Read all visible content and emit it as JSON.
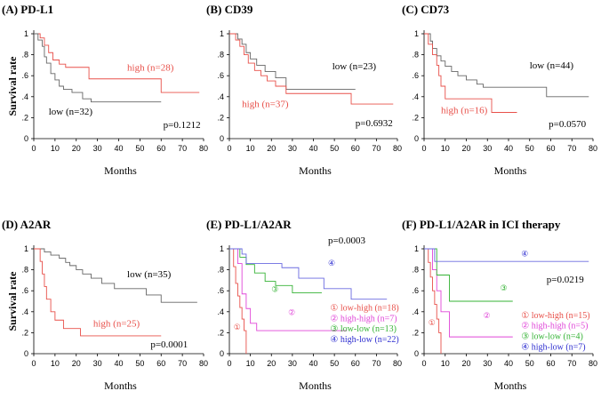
{
  "chart_data": [
    {
      "panel": "A",
      "type": "line",
      "title": "(A) PD-L1",
      "xlabel": "Months",
      "ylabel": "Survival rate",
      "xlim": [
        0,
        80
      ],
      "ylim": [
        0,
        1
      ],
      "xticks": [
        "0",
        "10",
        "20",
        "30",
        "40",
        "50",
        "60",
        "70",
        "80"
      ],
      "yticks": [
        "0",
        ".2",
        ".4",
        ".6",
        ".8",
        "1"
      ],
      "series": [
        {
          "name": "high (n=28)",
          "color": "#e8504a",
          "x": [
            0,
            3,
            5,
            7,
            9,
            12,
            15,
            26,
            60,
            78
          ],
          "y": [
            1,
            0.96,
            0.89,
            0.82,
            0.75,
            0.71,
            0.68,
            0.57,
            0.44,
            0.44
          ]
        },
        {
          "name": "low (n=32)",
          "color": "#666666",
          "x": [
            0,
            2,
            4,
            5,
            6,
            8,
            10,
            12,
            14,
            18,
            23,
            27,
            60
          ],
          "y": [
            1,
            0.94,
            0.88,
            0.78,
            0.72,
            0.62,
            0.56,
            0.5,
            0.47,
            0.44,
            0.38,
            0.35,
            0.35
          ]
        }
      ],
      "annotations": [
        {
          "id": "high",
          "text": "high (n=28)",
          "color": "#e8504a"
        },
        {
          "id": "low",
          "text": "low (n=32)",
          "color": "#000000"
        },
        {
          "id": "p",
          "text": "p=0.1212",
          "color": "#000000"
        }
      ]
    },
    {
      "panel": "B",
      "type": "line",
      "title": "(B) CD39",
      "xlabel": "Months",
      "ylabel": "",
      "xlim": [
        0,
        80
      ],
      "ylim": [
        0,
        1
      ],
      "xticks": [
        "0",
        "10",
        "20",
        "30",
        "40",
        "50",
        "60",
        "70",
        "80"
      ],
      "yticks": [
        "0",
        ".2",
        ".4",
        ".6",
        ".8",
        "1"
      ],
      "series": [
        {
          "name": "low (n=23)",
          "color": "#666666",
          "x": [
            0,
            4,
            6,
            8,
            10,
            13,
            17,
            22,
            27,
            60
          ],
          "y": [
            1,
            0.95,
            0.9,
            0.82,
            0.76,
            0.7,
            0.64,
            0.58,
            0.47,
            0.47
          ]
        },
        {
          "name": "high (n=37)",
          "color": "#e8504a",
          "x": [
            0,
            3,
            5,
            7,
            9,
            12,
            15,
            18,
            22,
            27,
            58,
            78
          ],
          "y": [
            1,
            0.94,
            0.88,
            0.8,
            0.72,
            0.65,
            0.6,
            0.55,
            0.5,
            0.43,
            0.33,
            0.33
          ]
        }
      ],
      "annotations": [
        {
          "id": "low",
          "text": "low (n=23)",
          "color": "#000000"
        },
        {
          "id": "high",
          "text": "high (n=37)",
          "color": "#e8504a"
        },
        {
          "id": "p",
          "text": "p=0.6932",
          "color": "#000000"
        }
      ]
    },
    {
      "panel": "C",
      "type": "line",
      "title": "(C) CD73",
      "xlabel": "Months",
      "ylabel": "",
      "xlim": [
        0,
        80
      ],
      "ylim": [
        0,
        1
      ],
      "xticks": [
        "0",
        "10",
        "20",
        "30",
        "40",
        "50",
        "60",
        "70",
        "80"
      ],
      "yticks": [
        "0",
        ".2",
        ".4",
        ".6",
        ".8",
        "1"
      ],
      "series": [
        {
          "name": "low (n=44)",
          "color": "#666666",
          "x": [
            0,
            3,
            4,
            6,
            8,
            10,
            13,
            16,
            20,
            25,
            28,
            58,
            78
          ],
          "y": [
            1,
            0.93,
            0.86,
            0.79,
            0.74,
            0.69,
            0.64,
            0.6,
            0.56,
            0.52,
            0.49,
            0.4,
            0.4
          ]
        },
        {
          "name": "high (n=16)",
          "color": "#e8504a",
          "x": [
            0,
            2,
            4,
            6,
            7,
            8,
            10,
            32,
            44
          ],
          "y": [
            1,
            0.9,
            0.8,
            0.7,
            0.6,
            0.5,
            0.38,
            0.25,
            0.25
          ]
        }
      ],
      "annotations": [
        {
          "id": "low",
          "text": "low (n=44)",
          "color": "#000000"
        },
        {
          "id": "high",
          "text": "high (n=16)",
          "color": "#e8504a"
        },
        {
          "id": "p",
          "text": "p=0.0570",
          "color": "#000000"
        }
      ]
    },
    {
      "panel": "D",
      "type": "line",
      "title": "(D) A2AR",
      "xlabel": "Months",
      "ylabel": "Survival rate",
      "xlim": [
        0,
        80
      ],
      "ylim": [
        0,
        1
      ],
      "xticks": [
        "0",
        "10",
        "20",
        "30",
        "40",
        "50",
        "60",
        "70",
        "80"
      ],
      "yticks": [
        "0",
        ".2",
        ".4",
        ".6",
        ".8",
        "1"
      ],
      "series": [
        {
          "name": "low (n=35)",
          "color": "#666666",
          "x": [
            0,
            5,
            8,
            12,
            15,
            17,
            20,
            23,
            27,
            32,
            38,
            45,
            53,
            60,
            77
          ],
          "y": [
            1,
            0.97,
            0.94,
            0.91,
            0.87,
            0.84,
            0.8,
            0.76,
            0.72,
            0.67,
            0.62,
            0.62,
            0.56,
            0.49,
            0.49
          ]
        },
        {
          "name": "high (n=25)",
          "color": "#e8504a",
          "x": [
            0,
            3,
            4,
            5,
            6,
            8,
            10,
            14,
            22,
            60
          ],
          "y": [
            1,
            0.88,
            0.76,
            0.64,
            0.52,
            0.4,
            0.32,
            0.24,
            0.17,
            0.17
          ]
        }
      ],
      "annotations": [
        {
          "id": "low",
          "text": "low (n=35)",
          "color": "#000000"
        },
        {
          "id": "high",
          "text": "high (n=25)",
          "color": "#e8504a"
        },
        {
          "id": "p",
          "text": "p=0.0001",
          "color": "#000000"
        }
      ]
    },
    {
      "panel": "E",
      "type": "line",
      "title": "(E) PD-L1/A2AR",
      "xlabel": "Months",
      "ylabel": "",
      "xlim": [
        0,
        80
      ],
      "ylim": [
        0,
        1
      ],
      "xticks": [
        "0",
        "10",
        "20",
        "30",
        "40",
        "50",
        "60",
        "70",
        "80"
      ],
      "yticks": [
        "0",
        ".2",
        ".4",
        ".6",
        ".8",
        "1"
      ],
      "series": [
        {
          "name": "low-high (n=18)",
          "color": "#e8504a",
          "x": [
            0,
            2,
            3,
            4,
            5,
            6,
            7,
            8
          ],
          "y": [
            1,
            0.83,
            0.67,
            0.55,
            0.44,
            0.33,
            0.22,
            0
          ]
        },
        {
          "name": "high-high (n=7)",
          "color": "#e046d8",
          "x": [
            0,
            4,
            6,
            8,
            10,
            13,
            56
          ],
          "y": [
            1,
            0.86,
            0.57,
            0.43,
            0.29,
            0.22,
            0.22
          ]
        },
        {
          "name": "low-low (n=13)",
          "color": "#36b336",
          "x": [
            0,
            5,
            8,
            12,
            17,
            22,
            30,
            44
          ],
          "y": [
            1,
            0.92,
            0.85,
            0.77,
            0.69,
            0.65,
            0.58,
            0.58
          ]
        },
        {
          "name": "high-low (n=22)",
          "color": "#6a6ae0",
          "x": [
            0,
            6,
            8,
            25,
            33,
            45,
            58,
            75
          ],
          "y": [
            1,
            0.95,
            0.86,
            0.82,
            0.72,
            0.62,
            0.52,
            0.52
          ]
        }
      ],
      "markers": [
        {
          "id": "m1",
          "text": "①",
          "color": "#e8504a"
        },
        {
          "id": "m2",
          "text": "②",
          "color": "#e046d8"
        },
        {
          "id": "m3",
          "text": "③",
          "color": "#36b336"
        },
        {
          "id": "m4",
          "text": "④",
          "color": "#2f2fd0"
        }
      ],
      "legend": [
        {
          "id": "l1",
          "text": "① low-high (n=18)",
          "color": "#e8504a"
        },
        {
          "id": "l2",
          "text": "② high-high (n=7)",
          "color": "#e046d8"
        },
        {
          "id": "l3",
          "text": "③ low-low (n=13)",
          "color": "#36b336"
        },
        {
          "id": "l4",
          "text": "④ high-low (n=22)",
          "color": "#2f2fd0"
        }
      ],
      "annotations": [
        {
          "id": "p",
          "text": "p=0.0003",
          "color": "#000000"
        }
      ]
    },
    {
      "panel": "F",
      "type": "line",
      "title": "(F) PD-L1/A2AR in ICI therapy",
      "xlabel": "Months",
      "ylabel": "",
      "xlim": [
        0,
        80
      ],
      "ylim": [
        0,
        1
      ],
      "xticks": [
        "0",
        "10",
        "20",
        "30",
        "40",
        "50",
        "60",
        "70",
        "80"
      ],
      "yticks": [
        "0",
        ".2",
        ".4",
        ".6",
        ".8",
        "1"
      ],
      "series": [
        {
          "name": "low-high (n=15)",
          "color": "#e8504a",
          "x": [
            0,
            2,
            3,
            4,
            5,
            6,
            7,
            8
          ],
          "y": [
            1,
            0.87,
            0.73,
            0.6,
            0.47,
            0.33,
            0.2,
            0
          ]
        },
        {
          "name": "high-high (n=5)",
          "color": "#e046d8",
          "x": [
            0,
            4,
            6,
            8,
            12,
            42
          ],
          "y": [
            1,
            0.8,
            0.6,
            0.4,
            0.16,
            0.16
          ]
        },
        {
          "name": "low-low (n=4)",
          "color": "#36b336",
          "x": [
            0,
            6,
            9,
            12,
            42
          ],
          "y": [
            1,
            0.75,
            0.75,
            0.5,
            0.5
          ]
        },
        {
          "name": "high-low (n=7)",
          "color": "#6a6ae0",
          "x": [
            0,
            5,
            8,
            78
          ],
          "y": [
            1,
            0.88,
            0.88,
            0.88
          ]
        }
      ],
      "markers": [
        {
          "id": "m1",
          "text": "①",
          "color": "#e8504a"
        },
        {
          "id": "m2",
          "text": "②",
          "color": "#e046d8"
        },
        {
          "id": "m3",
          "text": "③",
          "color": "#36b336"
        },
        {
          "id": "m4",
          "text": "④",
          "color": "#2f2fd0"
        }
      ],
      "legend": [
        {
          "id": "l1",
          "text": "① low-high (n=15)",
          "color": "#e8504a"
        },
        {
          "id": "l2",
          "text": "② high-high (n=5)",
          "color": "#e046d8"
        },
        {
          "id": "l3",
          "text": "③ low-low (n=4)",
          "color": "#36b336"
        },
        {
          "id": "l4",
          "text": "④ high-low (n=7)",
          "color": "#2f2fd0"
        }
      ],
      "annotations": [
        {
          "id": "p",
          "text": "p=0.0219",
          "color": "#000000"
        }
      ]
    }
  ]
}
